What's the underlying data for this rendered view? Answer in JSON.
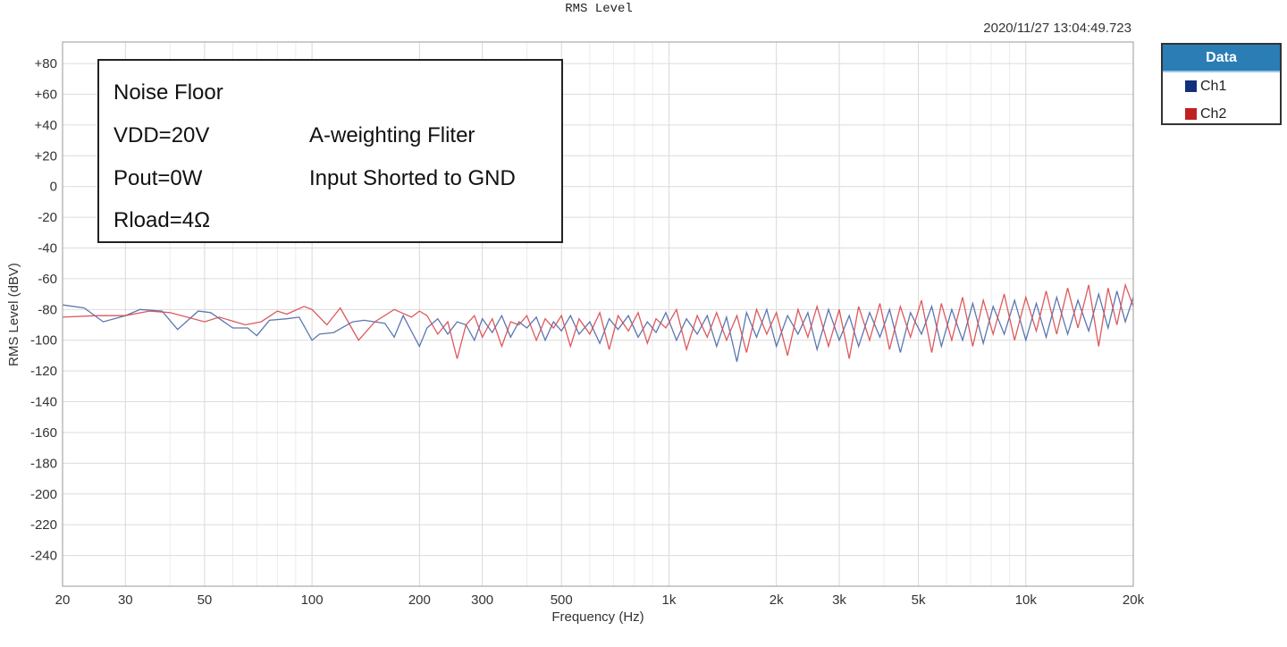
{
  "timestamp": "2020/11/27 13:04:49.723",
  "annotation": {
    "line1": "Noise Floor",
    "line2a": "VDD=20V",
    "line2b": "A-weighting Fliter",
    "line3a": "Pout=0W",
    "line3b": "Input Shorted to GND",
    "line4a": "Rload=4Ω"
  },
  "chart_data": {
    "type": "line",
    "title": "RMS Level",
    "xlabel": "Frequency (Hz)",
    "ylabel": "RMS Level (dBV)",
    "xscale": "log",
    "xlim": [
      20,
      20000
    ],
    "ylim": [
      -260,
      94
    ],
    "grid": true,
    "legend_title": "Data",
    "legend_position": "right",
    "xticks": [
      20,
      30,
      50,
      100,
      200,
      300,
      500,
      1000,
      2000,
      3000,
      5000,
      10000,
      20000
    ],
    "xtick_labels": [
      "20",
      "30",
      "50",
      "100",
      "200",
      "300",
      "500",
      "1k",
      "2k",
      "3k",
      "5k",
      "10k",
      "20k"
    ],
    "yticks": [
      80,
      60,
      40,
      20,
      0,
      -20,
      -40,
      -60,
      -80,
      -100,
      -120,
      -140,
      -160,
      -180,
      -200,
      -220,
      -240
    ],
    "ytick_labels": [
      "+80",
      "+60",
      "+40",
      "+20",
      "0",
      "-20",
      "-40",
      "-60",
      "-80",
      "-100",
      "-120",
      "-140",
      "-160",
      "-180",
      "-200",
      "-220",
      "-240"
    ],
    "series": [
      {
        "name": "Ch1",
        "color": "#4a68a8",
        "swatch": "#12307a",
        "x": [
          20,
          23,
          26,
          30,
          33,
          38,
          42,
          48,
          52,
          60,
          66,
          70,
          76,
          85,
          92,
          100,
          105,
          115,
          130,
          140,
          160,
          170,
          180,
          200,
          210,
          225,
          240,
          255,
          270,
          285,
          300,
          320,
          340,
          360,
          380,
          400,
          425,
          450,
          475,
          500,
          530,
          560,
          600,
          640,
          680,
          720,
          770,
          820,
          870,
          920,
          980,
          1050,
          1120,
          1200,
          1280,
          1360,
          1450,
          1550,
          1650,
          1760,
          1880,
          2000,
          2150,
          2300,
          2450,
          2600,
          2800,
          3000,
          3200,
          3400,
          3650,
          3900,
          4150,
          4450,
          4750,
          5100,
          5450,
          5800,
          6200,
          6650,
          7100,
          7600,
          8100,
          8700,
          9300,
          10000,
          10700,
          11400,
          12200,
          13100,
          14000,
          15000,
          16000,
          17000,
          18000,
          19000,
          20000
        ],
        "values": [
          -77,
          -79,
          -88,
          -84,
          -80,
          -81,
          -93,
          -81,
          -82,
          -92,
          -92,
          -97,
          -87,
          -86,
          -85,
          -100,
          -96,
          -95,
          -88,
          -87,
          -89,
          -98,
          -84,
          -104,
          -92,
          -86,
          -96,
          -88,
          -90,
          -100,
          -86,
          -95,
          -84,
          -98,
          -88,
          -92,
          -85,
          -100,
          -88,
          -94,
          -84,
          -96,
          -88,
          -102,
          -86,
          -93,
          -84,
          -98,
          -88,
          -95,
          -82,
          -100,
          -86,
          -96,
          -84,
          -104,
          -85,
          -114,
          -82,
          -98,
          -80,
          -104,
          -84,
          -96,
          -82,
          -106,
          -80,
          -100,
          -84,
          -104,
          -82,
          -98,
          -80,
          -108,
          -82,
          -96,
          -78,
          -104,
          -80,
          -100,
          -76,
          -102,
          -78,
          -96,
          -74,
          -100,
          -76,
          -98,
          -72,
          -96,
          -74,
          -94,
          -70,
          -92,
          -68,
          -88,
          -72
        ]
      },
      {
        "name": "Ch2",
        "color": "#d9484c",
        "swatch": "#c0221f",
        "x": [
          20,
          25,
          30,
          35,
          40,
          50,
          55,
          65,
          72,
          80,
          85,
          95,
          100,
          110,
          120,
          135,
          150,
          170,
          190,
          200,
          210,
          225,
          240,
          255,
          270,
          285,
          300,
          320,
          340,
          360,
          380,
          400,
          425,
          450,
          475,
          500,
          530,
          560,
          600,
          640,
          680,
          720,
          770,
          820,
          870,
          920,
          980,
          1050,
          1120,
          1200,
          1280,
          1360,
          1450,
          1550,
          1650,
          1760,
          1880,
          2000,
          2150,
          2300,
          2450,
          2600,
          2800,
          3000,
          3200,
          3400,
          3650,
          3900,
          4150,
          4450,
          4750,
          5100,
          5450,
          5800,
          6200,
          6650,
          7100,
          7600,
          8100,
          8700,
          9300,
          10000,
          10700,
          11400,
          12200,
          13100,
          14000,
          15000,
          16000,
          17000,
          18000,
          19000,
          20000
        ],
        "values": [
          -85,
          -84,
          -84,
          -81,
          -82,
          -88,
          -85,
          -90,
          -88,
          -81,
          -83,
          -78,
          -80,
          -90,
          -79,
          -100,
          -88,
          -80,
          -85,
          -81,
          -84,
          -96,
          -88,
          -112,
          -90,
          -84,
          -98,
          -86,
          -104,
          -88,
          -90,
          -84,
          -100,
          -86,
          -92,
          -84,
          -104,
          -86,
          -96,
          -82,
          -106,
          -84,
          -94,
          -82,
          -102,
          -86,
          -92,
          -80,
          -106,
          -84,
          -98,
          -82,
          -100,
          -84,
          -108,
          -80,
          -96,
          -82,
          -110,
          -80,
          -98,
          -78,
          -104,
          -80,
          -112,
          -78,
          -100,
          -76,
          -106,
          -78,
          -98,
          -74,
          -108,
          -76,
          -100,
          -72,
          -104,
          -74,
          -96,
          -70,
          -100,
          -72,
          -94,
          -68,
          -96,
          -66,
          -92,
          -64,
          -104,
          -66,
          -90,
          -64,
          -78
        ]
      }
    ]
  }
}
